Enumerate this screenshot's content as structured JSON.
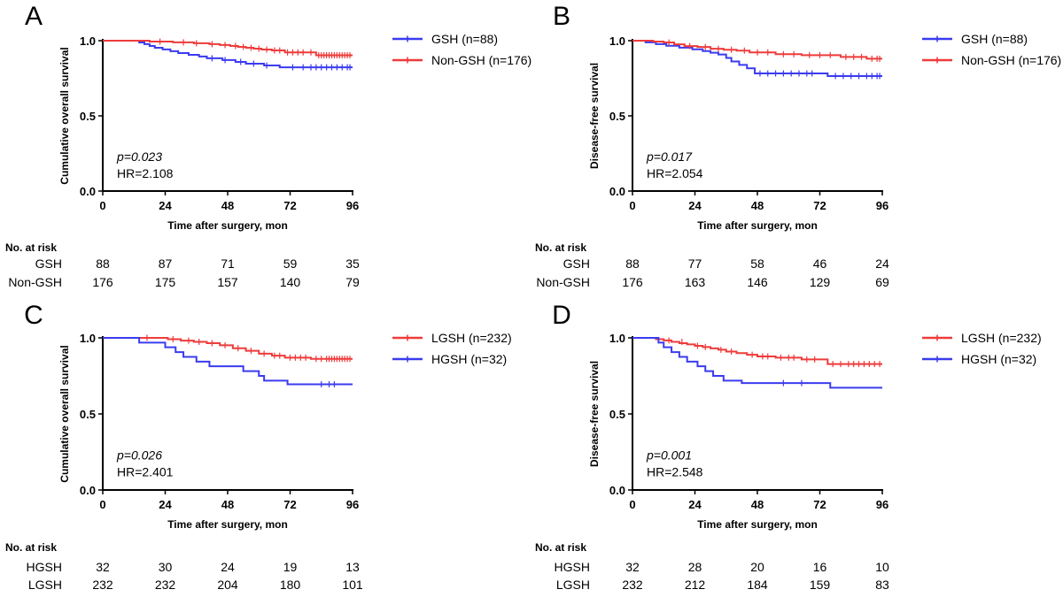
{
  "colors": {
    "blue": "#3b3bef",
    "red": "#ee3b3b",
    "axis": "#000000"
  },
  "chart_data": [
    {
      "type": "line",
      "panel_letter": "A",
      "ylabel": "Cumulative overall survival",
      "xlabel": "Time after surgery, mon",
      "xlim": [
        0,
        96
      ],
      "ylim": [
        0,
        1
      ],
      "xticks": [
        "0",
        "24",
        "48",
        "72",
        "96"
      ],
      "yticks": [
        "0.0",
        "0.5",
        "1.0"
      ],
      "p_value": "p=0.023",
      "hr": "HR=2.108",
      "legend_position": "right",
      "series": [
        {
          "name": "GSH (n=88)",
          "color": "blue",
          "x": [
            0,
            14,
            16,
            18,
            20,
            23,
            26,
            29,
            33,
            37,
            40,
            46,
            51,
            55,
            62,
            68,
            96
          ],
          "y": [
            1.0,
            0.988,
            0.977,
            0.965,
            0.953,
            0.942,
            0.93,
            0.918,
            0.906,
            0.895,
            0.883,
            0.871,
            0.859,
            0.847,
            0.835,
            0.823,
            0.823
          ],
          "censor_x": [
            42,
            47,
            53,
            58,
            63,
            73,
            77,
            80,
            82,
            84,
            86,
            88,
            90,
            92,
            94,
            95
          ],
          "censor_y": [
            0.883,
            0.871,
            0.859,
            0.847,
            0.835,
            0.823,
            0.823,
            0.823,
            0.823,
            0.823,
            0.823,
            0.823,
            0.823,
            0.823,
            0.823,
            0.823
          ]
        },
        {
          "name": "Non-GSH (n=176)",
          "color": "red",
          "x": [
            0,
            18,
            27,
            35,
            41,
            45,
            49,
            52,
            55,
            58,
            61,
            65,
            70,
            82,
            96
          ],
          "y": [
            1.0,
            0.994,
            0.989,
            0.983,
            0.977,
            0.971,
            0.965,
            0.959,
            0.953,
            0.947,
            0.941,
            0.935,
            0.922,
            0.903,
            0.903
          ],
          "censor_x": [
            22,
            31,
            36,
            42,
            47,
            51,
            54,
            57,
            60,
            63,
            66,
            68,
            71,
            73,
            75,
            77,
            80,
            83,
            84,
            85,
            86,
            87,
            88,
            89,
            90,
            91,
            92,
            93,
            94,
            95
          ],
          "censor_y": [
            0.994,
            0.989,
            0.983,
            0.977,
            0.971,
            0.965,
            0.959,
            0.953,
            0.947,
            0.941,
            0.935,
            0.935,
            0.922,
            0.922,
            0.922,
            0.922,
            0.922,
            0.903,
            0.903,
            0.903,
            0.903,
            0.903,
            0.903,
            0.903,
            0.903,
            0.903,
            0.903,
            0.903,
            0.903,
            0.903
          ]
        }
      ],
      "risk_table": {
        "title": "No. at risk",
        "rows": [
          {
            "label": "GSH",
            "values": [
              "88",
              "87",
              "71",
              "59",
              "35"
            ]
          },
          {
            "label": "Non-GSH",
            "values": [
              "176",
              "175",
              "157",
              "140",
              "79"
            ]
          }
        ]
      }
    },
    {
      "type": "line",
      "panel_letter": "B",
      "ylabel": "Disease-free survival",
      "xlabel": "Time after surgery, mon",
      "xlim": [
        0,
        96
      ],
      "ylim": [
        0,
        1
      ],
      "xticks": [
        "0",
        "24",
        "48",
        "72",
        "96"
      ],
      "yticks": [
        "0.0",
        "0.5",
        "1.0"
      ],
      "p_value": "p=0.017",
      "hr": "HR=2.054",
      "legend_position": "right",
      "series": [
        {
          "name": "GSH (n=88)",
          "color": "blue",
          "x": [
            0,
            5,
            9,
            13,
            18,
            23,
            27,
            30,
            33,
            36,
            38,
            41,
            44,
            47,
            75,
            96
          ],
          "y": [
            1.0,
            0.989,
            0.977,
            0.966,
            0.954,
            0.943,
            0.931,
            0.92,
            0.908,
            0.885,
            0.862,
            0.839,
            0.816,
            0.782,
            0.765,
            0.765
          ],
          "censor_x": [
            49,
            52,
            55,
            58,
            61,
            64,
            67,
            69,
            78,
            81,
            84,
            87,
            90,
            92,
            94,
            95
          ],
          "censor_y": [
            0.782,
            0.782,
            0.782,
            0.782,
            0.782,
            0.782,
            0.782,
            0.782,
            0.765,
            0.765,
            0.765,
            0.765,
            0.765,
            0.765,
            0.765,
            0.765
          ]
        },
        {
          "name": "Non-GSH (n=176)",
          "color": "red",
          "x": [
            0,
            8,
            12,
            16,
            20,
            25,
            30,
            35,
            40,
            45,
            55,
            65,
            80,
            90,
            96
          ],
          "y": [
            1.0,
            0.994,
            0.988,
            0.976,
            0.964,
            0.958,
            0.946,
            0.94,
            0.934,
            0.922,
            0.91,
            0.904,
            0.892,
            0.88,
            0.88
          ],
          "censor_x": [
            14,
            22,
            28,
            33,
            38,
            43,
            48,
            52,
            58,
            62,
            68,
            72,
            76,
            82,
            85,
            88,
            92,
            94,
            95
          ],
          "censor_y": [
            0.988,
            0.964,
            0.958,
            0.946,
            0.94,
            0.934,
            0.922,
            0.922,
            0.91,
            0.91,
            0.904,
            0.904,
            0.904,
            0.892,
            0.892,
            0.892,
            0.88,
            0.88,
            0.88
          ]
        }
      ],
      "risk_table": {
        "title": "No. at risk",
        "rows": [
          {
            "label": "GSH",
            "values": [
              "88",
              "77",
              "58",
              "46",
              "24"
            ]
          },
          {
            "label": "Non-GSH",
            "values": [
              "176",
              "163",
              "146",
              "129",
              "69"
            ]
          }
        ]
      }
    },
    {
      "type": "line",
      "panel_letter": "C",
      "ylabel": "Cumulative overall survival",
      "xlabel": "Time after surgery, mon",
      "xlim": [
        0,
        96
      ],
      "ylim": [
        0,
        1
      ],
      "xticks": [
        "0",
        "24",
        "48",
        "72",
        "96"
      ],
      "yticks": [
        "0.0",
        "0.5",
        "1.0"
      ],
      "p_value": "p=0.026",
      "hr": "HR=2.401",
      "legend_position": "right",
      "series": [
        {
          "name": "LGSH (n=232)",
          "color": "red",
          "x": [
            0,
            25,
            30,
            35,
            40,
            45,
            50,
            55,
            60,
            65,
            70,
            80,
            96
          ],
          "y": [
            1.0,
            0.991,
            0.982,
            0.974,
            0.965,
            0.951,
            0.932,
            0.915,
            0.896,
            0.883,
            0.87,
            0.862,
            0.862
          ],
          "censor_x": [
            17,
            27,
            33,
            37,
            42,
            47,
            52,
            57,
            62,
            66,
            68,
            72,
            74,
            76,
            78,
            82,
            84,
            86,
            87,
            88,
            89,
            90,
            91,
            92,
            93,
            94,
            95
          ],
          "censor_y": [
            1.0,
            0.991,
            0.982,
            0.974,
            0.965,
            0.951,
            0.932,
            0.915,
            0.896,
            0.883,
            0.883,
            0.87,
            0.87,
            0.87,
            0.87,
            0.862,
            0.862,
            0.862,
            0.862,
            0.862,
            0.862,
            0.862,
            0.862,
            0.862,
            0.862,
            0.862,
            0.862
          ]
        },
        {
          "name": "HGSH (n=32)",
          "color": "blue",
          "x": [
            0,
            14,
            24,
            28,
            31,
            36,
            41,
            54,
            60,
            62,
            71,
            96
          ],
          "y": [
            1.0,
            0.969,
            0.938,
            0.906,
            0.875,
            0.844,
            0.813,
            0.781,
            0.75,
            0.719,
            0.695,
            0.695
          ],
          "censor_x": [
            84,
            87,
            89
          ],
          "censor_y": [
            0.695,
            0.695,
            0.695
          ]
        }
      ],
      "risk_table": {
        "title": "No. at risk",
        "rows": [
          {
            "label": "HGSH",
            "values": [
              "32",
              "30",
              "24",
              "19",
              "13"
            ]
          },
          {
            "label": "LGSH",
            "values": [
              "232",
              "232",
              "204",
              "180",
              "101"
            ]
          }
        ]
      }
    },
    {
      "type": "line",
      "panel_letter": "D",
      "ylabel": "Disease-free survival",
      "xlabel": "Time after surgery, mon",
      "xlim": [
        0,
        96
      ],
      "ylim": [
        0,
        1
      ],
      "xticks": [
        "0",
        "24",
        "48",
        "72",
        "96"
      ],
      "yticks": [
        "0.0",
        "0.5",
        "1.0"
      ],
      "p_value": "p=0.001",
      "hr": "HR=2.548",
      "legend_position": "right",
      "series": [
        {
          "name": "LGSH (n=232)",
          "color": "red",
          "x": [
            0,
            9,
            12,
            15,
            18,
            21,
            24,
            27,
            30,
            33,
            36,
            40,
            44,
            48,
            55,
            65,
            75,
            96
          ],
          "y": [
            1.0,
            0.991,
            0.983,
            0.974,
            0.965,
            0.957,
            0.948,
            0.94,
            0.931,
            0.922,
            0.91,
            0.9,
            0.889,
            0.878,
            0.87,
            0.858,
            0.828,
            0.828
          ],
          "censor_x": [
            14,
            19,
            25,
            28,
            34,
            38,
            46,
            50,
            52,
            57,
            60,
            62,
            67,
            70,
            77,
            80,
            83,
            85,
            87,
            89,
            91,
            93,
            95
          ],
          "censor_y": [
            0.983,
            0.974,
            0.948,
            0.94,
            0.922,
            0.91,
            0.889,
            0.878,
            0.878,
            0.87,
            0.87,
            0.87,
            0.858,
            0.858,
            0.828,
            0.828,
            0.828,
            0.828,
            0.828,
            0.828,
            0.828,
            0.828,
            0.828
          ]
        },
        {
          "name": "HGSH (n=32)",
          "color": "blue",
          "x": [
            0,
            10,
            12,
            15,
            18,
            21,
            25,
            28,
            31,
            35,
            42,
            60,
            76,
            96
          ],
          "y": [
            1.0,
            0.969,
            0.938,
            0.906,
            0.875,
            0.844,
            0.813,
            0.781,
            0.75,
            0.719,
            0.703,
            0.703,
            0.672,
            0.672
          ],
          "censor_x": [
            58,
            65
          ],
          "censor_y": [
            0.703,
            0.703
          ]
        }
      ],
      "risk_table": {
        "title": "No. at risk",
        "rows": [
          {
            "label": "HGSH",
            "values": [
              "32",
              "28",
              "20",
              "16",
              "10"
            ]
          },
          {
            "label": "LGSH",
            "values": [
              "232",
              "212",
              "184",
              "159",
              "83"
            ]
          }
        ]
      }
    }
  ]
}
